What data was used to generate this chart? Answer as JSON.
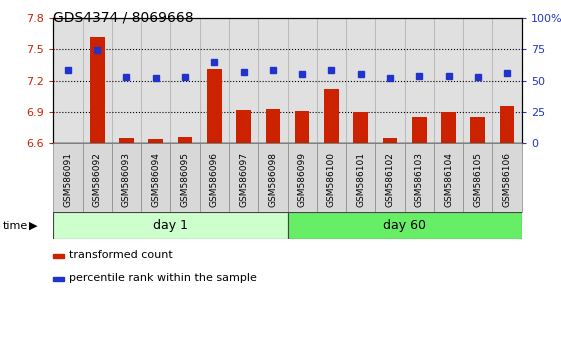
{
  "title": "GDS4374 / 8069668",
  "samples": [
    "GSM586091",
    "GSM586092",
    "GSM586093",
    "GSM586094",
    "GSM586095",
    "GSM586096",
    "GSM586097",
    "GSM586098",
    "GSM586099",
    "GSM586100",
    "GSM586101",
    "GSM586102",
    "GSM586103",
    "GSM586104",
    "GSM586105",
    "GSM586106"
  ],
  "bar_values": [
    6.605,
    7.62,
    6.655,
    6.64,
    6.665,
    7.31,
    6.92,
    6.93,
    6.905,
    7.12,
    6.895,
    6.655,
    6.855,
    6.9,
    6.855,
    6.955
  ],
  "blue_values": [
    58,
    74,
    53,
    52,
    53,
    65,
    57,
    58,
    55,
    58,
    55,
    52,
    54,
    54,
    53,
    56
  ],
  "bar_bottom": 6.6,
  "ylim_left": [
    6.6,
    7.8
  ],
  "ylim_right": [
    0,
    100
  ],
  "yticks_left": [
    6.6,
    6.9,
    7.2,
    7.5,
    7.8
  ],
  "yticks_right": [
    0,
    25,
    50,
    75,
    100
  ],
  "hlines": [
    6.9,
    7.2,
    7.5
  ],
  "bar_color": "#cc2200",
  "blue_color": "#2233cc",
  "day1_samples": 8,
  "day60_samples": 8,
  "day1_label": "day 1",
  "day60_label": "day 60",
  "time_label": "time",
  "legend1": "transformed count",
  "legend2": "percentile rank within the sample",
  "day1_color": "#ccffcc",
  "day60_color": "#66ee66",
  "col_bg": "#dddddd",
  "white_bg": "#ffffff"
}
